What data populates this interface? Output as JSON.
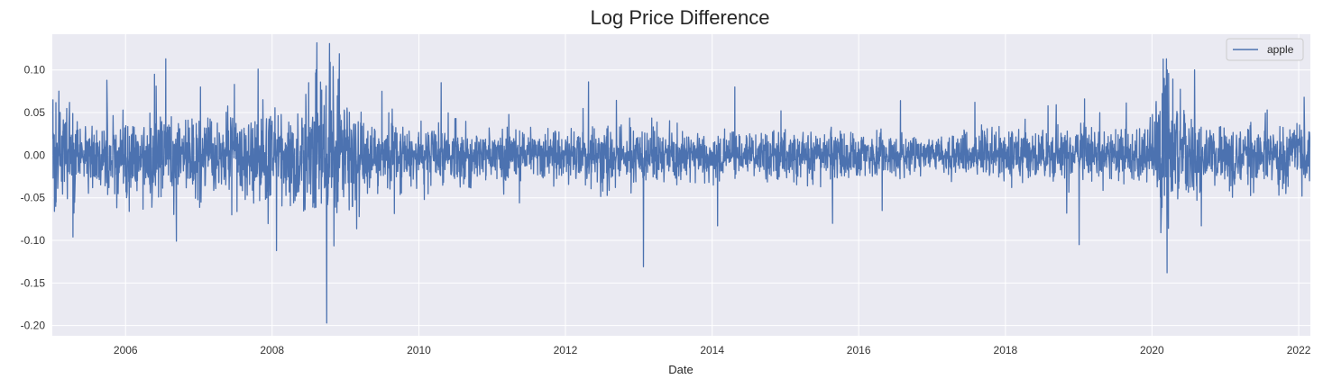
{
  "chart_data": {
    "type": "line",
    "title": "Log Price Difference",
    "xlabel": "Date",
    "ylabel": "",
    "x_range": [
      "2005-01-01",
      "2022-02-28"
    ],
    "ylim": [
      -0.212,
      0.142
    ],
    "x_ticks": [
      "2006",
      "2008",
      "2010",
      "2012",
      "2014",
      "2016",
      "2018",
      "2020",
      "2022"
    ],
    "y_ticks": [
      "0.10",
      "0.05",
      "0.00",
      "-0.05",
      "-0.10",
      "-0.15",
      "-0.20"
    ],
    "grid": true,
    "legend_position": "top-right",
    "colors": {
      "plot_background": "#eaeaf2",
      "grid": "#ffffff",
      "line": "#4c72b0"
    },
    "series": [
      {
        "name": "apple",
        "volatility_profile": [
          [
            "2005-01-01",
            0.024
          ],
          [
            "2005-06-01",
            0.02
          ],
          [
            "2006-01-01",
            0.025
          ],
          [
            "2006-06-01",
            0.024
          ],
          [
            "2007-01-01",
            0.02
          ],
          [
            "2007-06-01",
            0.021
          ],
          [
            "2008-01-01",
            0.03
          ],
          [
            "2008-06-01",
            0.025
          ],
          [
            "2008-09-15",
            0.048
          ],
          [
            "2009-01-01",
            0.032
          ],
          [
            "2009-06-01",
            0.018
          ],
          [
            "2010-01-01",
            0.016
          ],
          [
            "2011-01-01",
            0.014
          ],
          [
            "2012-01-01",
            0.016
          ],
          [
            "2013-01-01",
            0.017
          ],
          [
            "2014-01-01",
            0.013
          ],
          [
            "2015-01-01",
            0.014
          ],
          [
            "2016-01-01",
            0.013
          ],
          [
            "2017-01-01",
            0.01
          ],
          [
            "2018-01-01",
            0.014
          ],
          [
            "2019-01-01",
            0.017
          ],
          [
            "2019-06-01",
            0.015
          ],
          [
            "2020-01-01",
            0.017
          ],
          [
            "2020-03-15",
            0.055
          ],
          [
            "2020-06-01",
            0.022
          ],
          [
            "2021-01-01",
            0.017
          ],
          [
            "2022-02-28",
            0.018
          ]
        ],
        "notable_points": [
          [
            "2005-01-04",
            0.065
          ],
          [
            "2005-01-12",
            -0.066
          ],
          [
            "2005-04-14",
            -0.096
          ],
          [
            "2005-09-30",
            0.088
          ],
          [
            "2006-01-19",
            -0.066
          ],
          [
            "2006-05-25",
            0.095
          ],
          [
            "2006-07-20",
            0.113
          ],
          [
            "2007-01-09",
            0.08
          ],
          [
            "2007-06-14",
            -0.07
          ],
          [
            "2007-10-23",
            0.101
          ],
          [
            "2008-01-23",
            -0.112
          ],
          [
            "2008-07-01",
            0.085
          ],
          [
            "2008-09-29",
            -0.197
          ],
          [
            "2008-10-13",
            0.131
          ],
          [
            "2008-12-01",
            0.119
          ],
          [
            "2009-07-01",
            0.075
          ],
          [
            "2010-01-28",
            -0.052
          ],
          [
            "2010-04-22",
            0.085
          ],
          [
            "2011-05-17",
            -0.056
          ],
          [
            "2012-04-25",
            0.086
          ],
          [
            "2013-01-24",
            -0.131
          ],
          [
            "2014-01-28",
            -0.083
          ],
          [
            "2014-04-24",
            0.08
          ],
          [
            "2015-08-24",
            -0.08
          ],
          [
            "2016-04-27",
            -0.065
          ],
          [
            "2016-07-27",
            0.064
          ],
          [
            "2017-08-02",
            0.062
          ],
          [
            "2018-08-01",
            0.058
          ],
          [
            "2018-11-02",
            -0.068
          ],
          [
            "2019-01-03",
            -0.105
          ],
          [
            "2019-01-30",
            0.066
          ],
          [
            "2020-03-02",
            0.09
          ],
          [
            "2020-03-13",
            0.113
          ],
          [
            "2020-03-16",
            -0.138
          ],
          [
            "2020-03-24",
            0.096
          ],
          [
            "2020-07-31",
            0.1
          ],
          [
            "2020-09-03",
            -0.083
          ],
          [
            "2021-01-28",
            -0.036
          ],
          [
            "2022-01-28",
            0.068
          ]
        ]
      }
    ]
  }
}
